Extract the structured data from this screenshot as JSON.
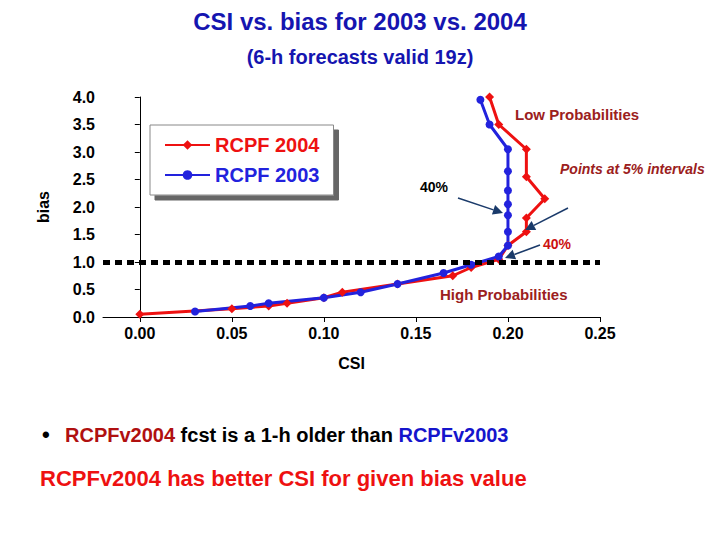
{
  "chart_data": {
    "type": "line",
    "title": "CSI vs. bias for 2003 vs. 2004",
    "subtitle": "(6-h forecasts valid 19z)",
    "x_label": "CSI",
    "y_label": "bias",
    "xlim": [
      -0.02,
      0.25
    ],
    "xticks": [
      {
        "value": 0,
        "label": "0.00"
      },
      {
        "value": 0.05,
        "label": "0.05"
      },
      {
        "value": 0.1,
        "label": "0.10"
      },
      {
        "value": 0.15,
        "label": "0.15"
      },
      {
        "value": 0.2,
        "label": "0.20"
      },
      {
        "value": 0.25,
        "label": "0.25"
      }
    ],
    "ylim": [
      0,
      4
    ],
    "yticks": [
      {
        "value": 0,
        "label": "0.0"
      },
      {
        "value": 0.5,
        "label": "0.5"
      },
      {
        "value": 1,
        "label": "1.0"
      },
      {
        "value": 1.5,
        "label": "1.5"
      },
      {
        "value": 2,
        "label": "2.0"
      },
      {
        "value": 2.5,
        "label": "2.5"
      },
      {
        "value": 3,
        "label": "3.0"
      },
      {
        "value": 3.5,
        "label": "3.5"
      },
      {
        "value": 4,
        "label": "4.0"
      }
    ],
    "grid": false,
    "legend": "upper left",
    "hline": 1.0,
    "series": [
      {
        "name": "RCPF 2004",
        "color": "#ee1111",
        "marker": "diamond",
        "x": [
          0.0,
          0.05,
          0.07,
          0.08,
          0.1,
          0.11,
          0.14,
          0.17,
          0.18,
          0.195,
          0.2,
          0.21,
          0.21,
          0.22,
          0.21,
          0.21,
          0.195,
          0.19
        ],
        "values": [
          0.05,
          0.15,
          0.2,
          0.25,
          0.35,
          0.45,
          0.6,
          0.75,
          0.9,
          1.05,
          1.3,
          1.55,
          1.8,
          2.15,
          2.55,
          3.05,
          3.5,
          4.0
        ]
      },
      {
        "name": "RCPF 2003",
        "color": "#2222dd",
        "marker": "circle",
        "x": [
          0.03,
          0.06,
          0.07,
          0.1,
          0.12,
          0.14,
          0.165,
          0.18,
          0.195,
          0.2,
          0.2,
          0.2,
          0.2,
          0.2,
          0.2,
          0.2,
          0.19,
          0.185
        ],
        "values": [
          0.1,
          0.2,
          0.25,
          0.35,
          0.45,
          0.6,
          0.8,
          0.95,
          1.1,
          1.3,
          1.55,
          1.85,
          2.05,
          2.3,
          2.65,
          3.05,
          3.5,
          3.95
        ]
      }
    ],
    "annotations": [
      {
        "text": "Low Probabilities",
        "color": "#9b2020"
      },
      {
        "text": "Points at 5% intervals",
        "color": "#9b2020"
      },
      {
        "text": "40%",
        "color": "#000000"
      },
      {
        "text": "40%",
        "color": "#cc1111"
      },
      {
        "text": "High Probabilities",
        "color": "#9b2020"
      }
    ],
    "bullet": "•",
    "note_line": [
      {
        "text": "RCPFv2004",
        "color": "#b01010"
      },
      {
        "text": " fcst is a 1-h older than ",
        "color": "#000000"
      },
      {
        "text": "RCPFv2003",
        "color": "#1515cc"
      }
    ],
    "conclusion": {
      "text": "RCPFv2004 has better CSI for given bias value",
      "color": "#ee1111"
    }
  }
}
